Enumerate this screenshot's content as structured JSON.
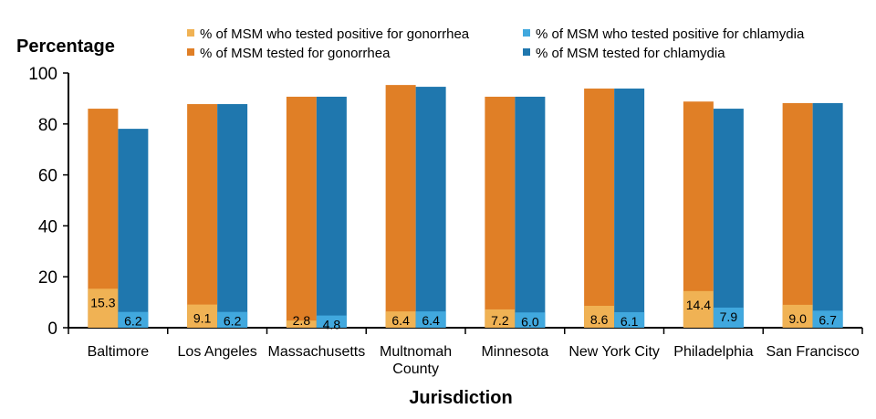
{
  "chart_data": {
    "type": "bar",
    "ylabel": "Percentage",
    "xlabel": "Jurisdiction",
    "ylim": [
      0,
      100
    ],
    "yticks": [
      0,
      20,
      40,
      60,
      80,
      100
    ],
    "grid": false,
    "legend_position": "top",
    "categories": [
      "Baltimore",
      "Los Angeles",
      "Massachusetts",
      "Multnomah County",
      "Minnesota",
      "New York City",
      "Philadelphia",
      "San Francisco"
    ],
    "category_lines": [
      [
        "Baltimore"
      ],
      [
        "Los Angeles"
      ],
      [
        "Massachusetts"
      ],
      [
        "Multnomah",
        "County"
      ],
      [
        "Minnesota"
      ],
      [
        "New York City"
      ],
      [
        "Philadelphia"
      ],
      [
        "San Francisco"
      ]
    ],
    "series": [
      {
        "name": "% of MSM who tested positive for gonorrhea",
        "color": "#f0b254",
        "values": [
          15.3,
          9.1,
          2.8,
          6.4,
          7.2,
          8.6,
          14.4,
          9.0
        ],
        "labels": [
          "15.3",
          "9.1",
          "2.8",
          "6.4",
          "7.2",
          "8.6",
          "14.4",
          "9.0"
        ]
      },
      {
        "name": "% of MSM tested for gonorrhea",
        "color": "#e07f26",
        "values": [
          86,
          87.8,
          90.7,
          95.3,
          90.7,
          93.9,
          88.8,
          88.2
        ]
      },
      {
        "name": "% of MSM who tested positive for chlamydia",
        "color": "#41a8de",
        "values": [
          6.2,
          6.2,
          4.8,
          6.4,
          6.0,
          6.1,
          7.9,
          6.7
        ],
        "labels": [
          "6.2",
          "6.2",
          "4.8",
          "6.4",
          "6.0",
          "6.1",
          "7.9",
          "6.7"
        ]
      },
      {
        "name": "% of MSM tested for chlamydia",
        "color": "#1f77ae",
        "values": [
          78.1,
          87.8,
          90.7,
          94.6,
          90.7,
          93.9,
          86,
          88.2
        ]
      }
    ]
  }
}
